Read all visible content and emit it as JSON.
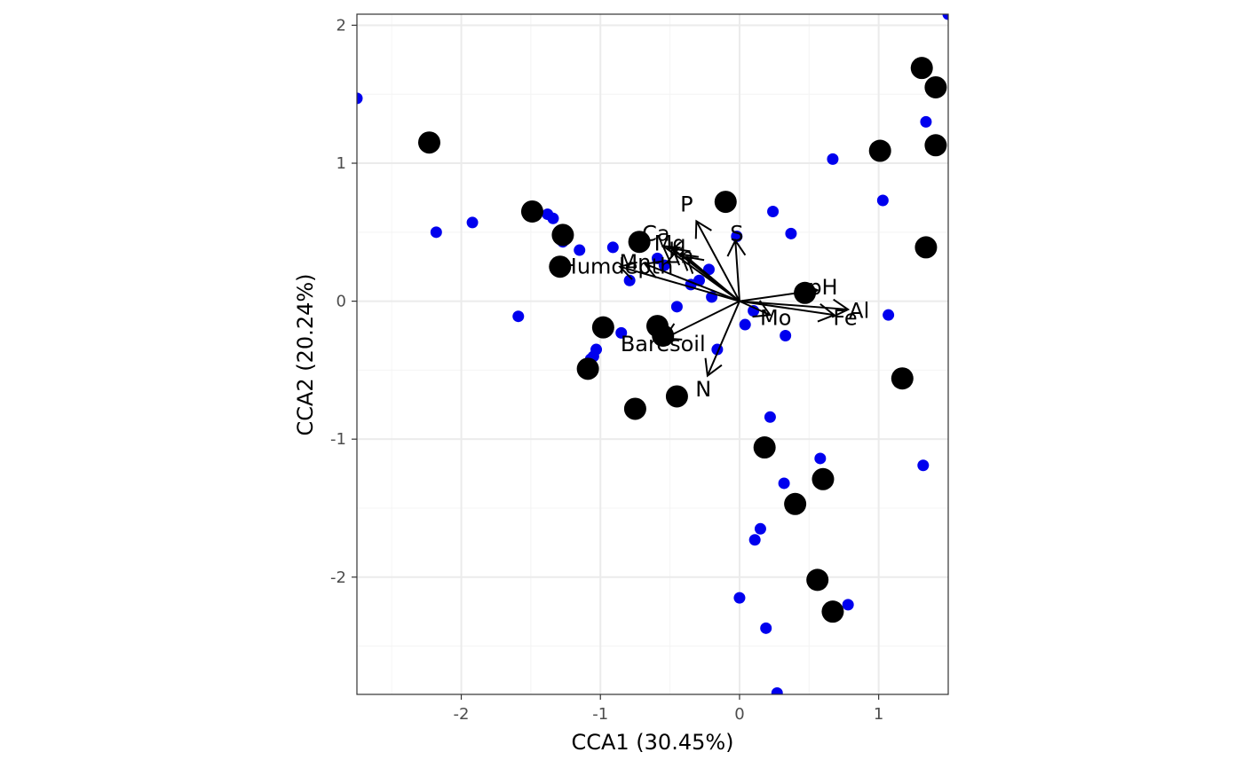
{
  "chart_data": {
    "type": "scatter",
    "title": "",
    "xlabel": "CCA1 (30.45%)",
    "ylabel": "CCA2 (20.24%)",
    "xlim": [
      -2.75,
      1.5
    ],
    "ylim": [
      -2.85,
      2.08
    ],
    "x_ticks": [
      -2,
      -1,
      0,
      1
    ],
    "x_tick_labels": [
      "-2",
      "-1",
      "0",
      "1"
    ],
    "y_ticks": [
      -2,
      -1,
      0,
      1,
      2
    ],
    "y_tick_labels": [
      "-2",
      "-1",
      "0",
      "1",
      "2"
    ],
    "grid": true,
    "legend": "none",
    "colors": {
      "species": "#0000ee",
      "sites": "#000000",
      "vectors": "#000000",
      "grid_major": "#ebebeb",
      "grid_minor": "#f4f4f4",
      "panel_border": "#333333"
    },
    "series": [
      {
        "kind": "species-points",
        "x": [
          -2.75,
          -2.18,
          -1.92,
          -1.59,
          -1.38,
          -1.34,
          -1.27,
          -1.15,
          -0.91,
          -0.79,
          -0.59,
          -0.54,
          -0.35,
          -0.29,
          -0.22,
          -0.2,
          -0.45,
          -0.85,
          -1.03,
          -1.05,
          -1.07,
          -0.75,
          -0.16,
          0.04,
          0.1,
          0.22,
          0.15,
          0.11,
          0.32,
          0.33,
          0.37,
          0.24,
          -0.02,
          0,
          0.67,
          1.03,
          1.34,
          1.07,
          1.32,
          0.58,
          0.19,
          0.78,
          1.5,
          0.27
        ],
        "y": [
          1.47,
          0.5,
          0.57,
          -0.11,
          0.63,
          0.6,
          0.43,
          0.37,
          0.39,
          0.15,
          0.31,
          0.26,
          0.12,
          0.15,
          0.23,
          0.03,
          -0.04,
          -0.23,
          -0.35,
          -0.4,
          -0.42,
          -0.77,
          -0.35,
          -0.17,
          -0.07,
          -0.84,
          -1.65,
          -1.73,
          -1.32,
          -0.25,
          0.49,
          0.65,
          0.47,
          -2.15,
          1.03,
          0.73,
          1.3,
          -0.1,
          -1.19,
          -1.14,
          -2.37,
          -2.2,
          2.08,
          -2.84
        ]
      },
      {
        "kind": "site-points",
        "x": [
          -2.23,
          -1.49,
          -1.27,
          -1.29,
          -0.72,
          -0.1,
          -0.98,
          -0.59,
          -0.55,
          -1.09,
          -0.75,
          -0.45,
          0.47,
          0.18,
          0.4,
          0.6,
          0.56,
          0.67,
          1.17,
          1.34,
          1.31,
          1.41,
          1.01,
          1.41
        ],
        "y": [
          1.15,
          0.65,
          0.48,
          0.25,
          0.43,
          0.72,
          -0.19,
          -0.18,
          -0.25,
          -0.49,
          -0.78,
          -0.69,
          0.06,
          -1.06,
          -1.47,
          -1.29,
          -2.02,
          -2.25,
          -0.56,
          0.39,
          1.69,
          1.55,
          1.09,
          1.13
        ]
      }
    ],
    "vectors": [
      {
        "label": "P",
        "x": -0.31,
        "y": 0.58,
        "label_x": -0.38,
        "label_y": 0.7
      },
      {
        "label": "S",
        "x": -0.03,
        "y": 0.44,
        "label_x": -0.02,
        "label_y": 0.49
      },
      {
        "label": "Ca",
        "x": -0.55,
        "y": 0.4,
        "label_x": -0.6,
        "label_y": 0.49
      },
      {
        "label": "Mg",
        "x": -0.48,
        "y": 0.38,
        "label_x": -0.5,
        "label_y": 0.42
      },
      {
        "label": "K",
        "x": -0.42,
        "y": 0.34,
        "label_x": -0.46,
        "label_y": 0.37
      },
      {
        "label": "Zn",
        "x": -0.38,
        "y": 0.32,
        "label_x": -0.43,
        "label_y": 0.33
      },
      {
        "label": "Humdepth",
        "x": -0.86,
        "y": 0.25,
        "label_x": -0.88,
        "label_y": 0.25
      },
      {
        "label": "Mn",
        "x": -0.68,
        "y": 0.27,
        "label_x": -0.75,
        "label_y": 0.28
      },
      {
        "label": "pH",
        "x": 0.56,
        "y": 0.08,
        "label_x": 0.6,
        "label_y": 0.1
      },
      {
        "label": "Al",
        "x": 0.78,
        "y": -0.06,
        "label_x": 0.86,
        "label_y": -0.07
      },
      {
        "label": "Fe",
        "x": 0.68,
        "y": -0.1,
        "label_x": 0.76,
        "label_y": -0.12
      },
      {
        "label": "Mo",
        "x": 0.22,
        "y": -0.1,
        "label_x": 0.26,
        "label_y": -0.12
      },
      {
        "label": "Baresoil",
        "x": -0.54,
        "y": -0.27,
        "label_x": -0.55,
        "label_y": -0.31
      },
      {
        "label": "N",
        "x": -0.23,
        "y": -0.54,
        "label_x": -0.26,
        "label_y": -0.64
      }
    ]
  }
}
